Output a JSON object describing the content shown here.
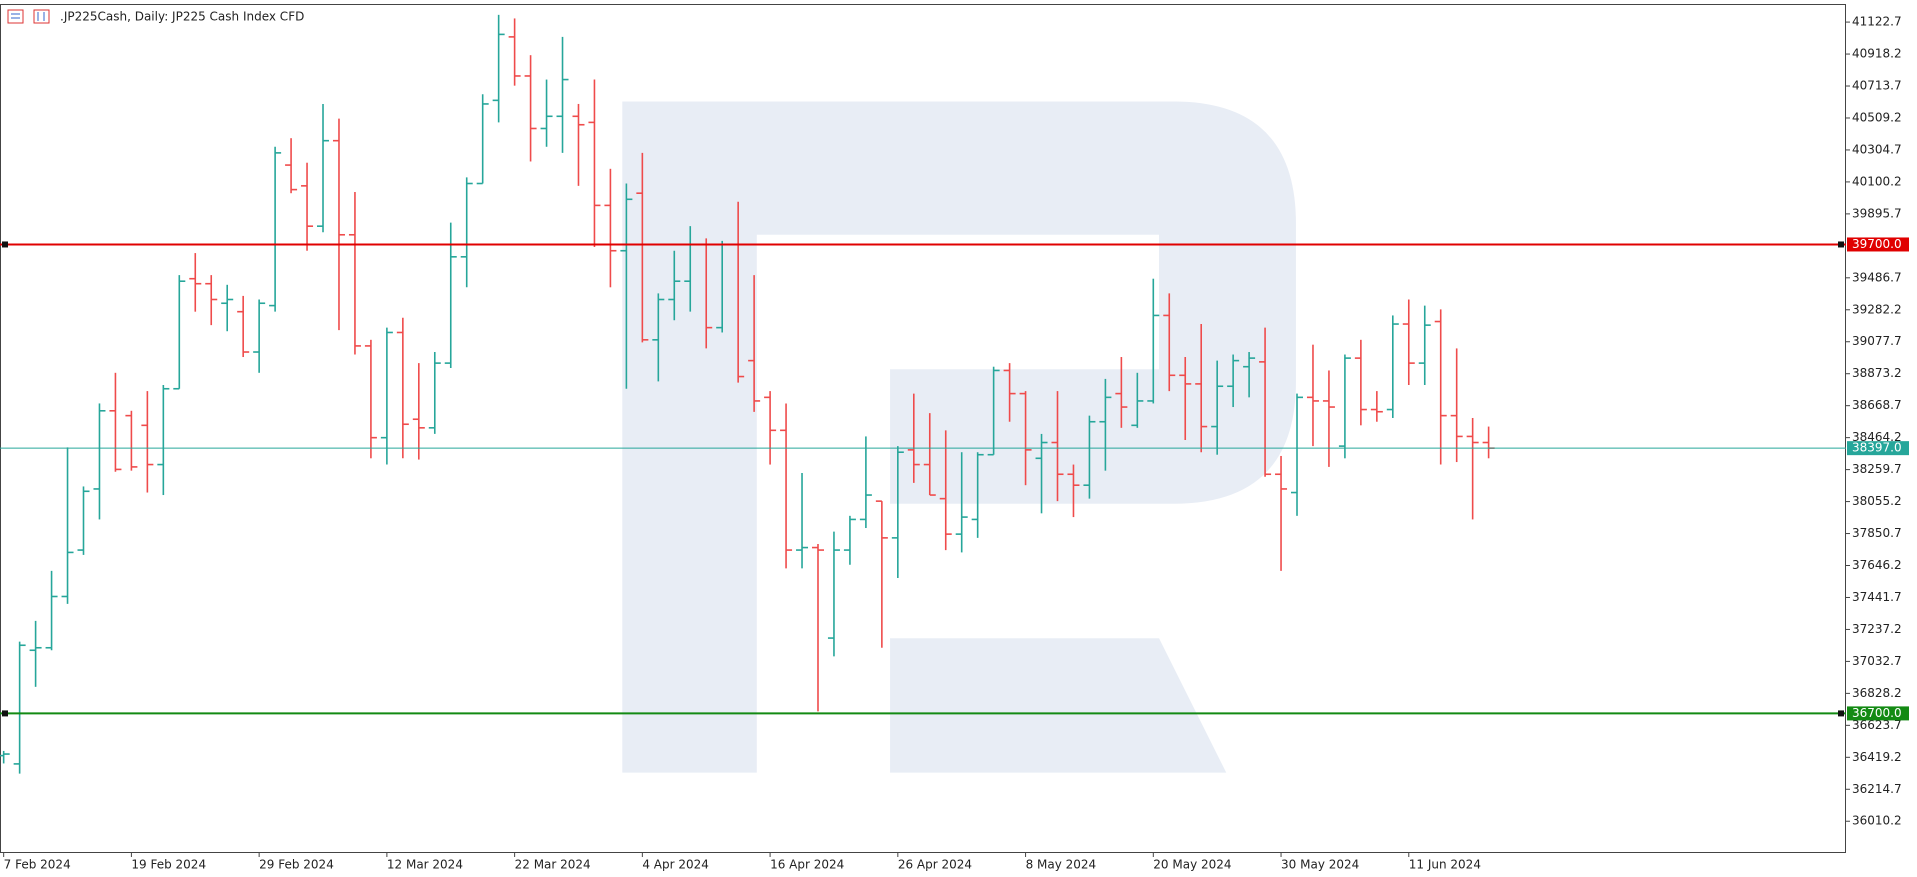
{
  "chart_data": {
    "type": "ohlc",
    "title": ".JP225Cash, Daily:  JP225 Cash Index CFD",
    "categories": [
      "7 Feb 2024",
      null,
      null,
      null,
      null,
      null,
      null,
      null,
      "19 Feb 2024",
      null,
      null,
      null,
      null,
      null,
      null,
      null,
      "29 Feb 2024",
      null,
      null,
      null,
      null,
      null,
      null,
      null,
      "12 Mar 2024",
      null,
      null,
      null,
      null,
      null,
      null,
      null,
      "22 Mar 2024",
      null,
      null,
      null,
      null,
      null,
      null,
      null,
      "4 Apr 2024",
      null,
      null,
      null,
      null,
      null,
      null,
      null,
      "16 Apr 2024",
      null,
      null,
      null,
      null,
      null,
      null,
      null,
      "26 Apr 2024",
      null,
      null,
      null,
      null,
      null,
      null,
      null,
      "8 May 2024",
      null,
      null,
      null,
      null,
      null,
      null,
      null,
      "20 May 2024",
      null,
      null,
      null,
      null,
      null,
      null,
      null,
      "30 May 2024",
      null,
      null,
      null,
      null,
      null,
      null,
      null,
      "11 Jun 2024",
      null,
      null,
      null,
      null,
      null
    ],
    "open": [
      36430,
      36377,
      37104,
      37120,
      37448,
      37745,
      38136,
      38636,
      38605,
      38543,
      38292,
      38777,
      39481,
      39449,
      39324,
      39270,
      39012,
      39309,
      40208,
      40075,
      39817,
      40364,
      39762,
      39051,
      38464,
      39137,
      38582,
      38527,
      38941,
      39621,
      40090,
      40622,
      41028,
      40778,
      40442,
      40520,
      40520,
      40481,
      39950,
      39660,
      40028,
      39090,
      39348,
      39465,
      39700,
      39168,
      39700,
      38957,
      38722,
      38511,
      37745,
      37761,
      37182,
      37745,
      37941,
      38058,
      37823,
      38386,
      38292,
      38074,
      37847,
      37941,
      38355,
      38894,
      38746,
      38332,
      38433,
      38230,
      38160,
      38566,
      38746,
      38543,
      38699,
      39246,
      38863,
      38808,
      38535,
      38793,
      38918,
      38949,
      38230,
      38113,
      38722,
      38699,
      38410,
      38973,
      38644,
      38644,
      39191,
      38941,
      39207,
      38605,
      38472,
      38433
    ],
    "high": [
      36460,
      37159,
      37292,
      37612,
      38402,
      38152,
      38683,
      38879,
      38636,
      38762,
      38801,
      39504,
      39645,
      39504,
      39442,
      39371,
      39348,
      40325,
      40380,
      40223,
      40599,
      40505,
      40036,
      39090,
      39168,
      39231,
      38941,
      39012,
      39840,
      40129,
      40661,
      41169,
      41146,
      40911,
      40755,
      41028,
      40599,
      40755,
      40184,
      40090,
      40286,
      39387,
      39660,
      39817,
      39739,
      39723,
      39973,
      39504,
      38762,
      38683,
      38238,
      37784,
      37863,
      37964,
      38472,
      38058,
      38410,
      38746,
      38621,
      38511,
      38371,
      38371,
      38918,
      38941,
      38762,
      38488,
      38762,
      38292,
      38605,
      38840,
      38980,
      38879,
      39481,
      39387,
      38980,
      39191,
      38957,
      38996,
      39012,
      39168,
      38347,
      38746,
      39059,
      38894,
      38996,
      39090,
      38762,
      39246,
      39348,
      39309,
      39285,
      39035,
      38590,
      38535
    ],
    "low": [
      36380,
      36315,
      36870,
      37104,
      37401,
      37714,
      37941,
      38246,
      38253,
      38113,
      38097,
      38777,
      39270,
      39184,
      39145,
      38980,
      38879,
      39270,
      40028,
      39660,
      39778,
      39152,
      38996,
      38332,
      38292,
      38332,
      38324,
      38488,
      38910,
      39426,
      40090,
      40481,
      40716,
      40231,
      40325,
      40286,
      40075,
      39684,
      39426,
      38777,
      39074,
      38824,
      39215,
      39270,
      39035,
      39137,
      38816,
      38629,
      38292,
      37628,
      37628,
      36713,
      37065,
      37651,
      37886,
      37120,
      37566,
      38175,
      38097,
      37745,
      37730,
      37823,
      38355,
      38566,
      38160,
      37980,
      38058,
      37956,
      38074,
      38253,
      38527,
      38527,
      38683,
      38762,
      38449,
      38371,
      38355,
      38660,
      38722,
      38214,
      37612,
      37964,
      38410,
      38277,
      38332,
      38543,
      38566,
      38590,
      38801,
      38801,
      38292,
      38308,
      37941,
      38332
    ],
    "close": [
      36440,
      37136,
      37120,
      37448,
      37730,
      38121,
      38636,
      38261,
      38277,
      38292,
      38777,
      39465,
      39449,
      39348,
      39348,
      39012,
      39324,
      40286,
      40051,
      39817,
      40364,
      39762,
      39051,
      38464,
      39137,
      38550,
      38527,
      38941,
      39621,
      40090,
      40599,
      41044,
      40778,
      40442,
      40520,
      40755,
      40466,
      39950,
      39660,
      39989,
      39090,
      39348,
      39465,
      39700,
      39168,
      39700,
      38855,
      38699,
      38511,
      37745,
      37761,
      37745,
      37745,
      37941,
      38097,
      37823,
      38371,
      38292,
      38097,
      37847,
      37956,
      38355,
      38894,
      38746,
      38386,
      38433,
      38230,
      38160,
      38566,
      38722,
      38660,
      38699,
      39246,
      38863,
      38808,
      38535,
      38793,
      38957,
      38973,
      38230,
      38136,
      38722,
      38699,
      38660,
      38973,
      38644,
      38630,
      39191,
      38941,
      39184,
      38605,
      38472,
      38433,
      38397
    ],
    "up_color": "#26a69a",
    "down_color": "#ef4b4b",
    "ylim": [
      35807,
      41232
    ],
    "yticks": [
      41122.7,
      40918.2,
      40713.7,
      40509.2,
      40304.7,
      40100.2,
      39895.7,
      39486.7,
      39282.2,
      39077.7,
      38873.2,
      38668.7,
      38464.2,
      38259.7,
      38055.2,
      37850.7,
      37646.2,
      37441.7,
      37237.2,
      37032.7,
      36828.2,
      36623.7,
      36419.2,
      36214.7,
      36010.2
    ],
    "hlines": [
      {
        "value": 39700,
        "label": "39700.0",
        "color": "#e00000",
        "width": 2
      },
      {
        "value": 38397,
        "label": "38397.0",
        "color": "#26a69a",
        "width": 1
      },
      {
        "value": 36700,
        "label": "36700.0",
        "color": "#138a13",
        "width": 2
      }
    ],
    "grid": false
  }
}
